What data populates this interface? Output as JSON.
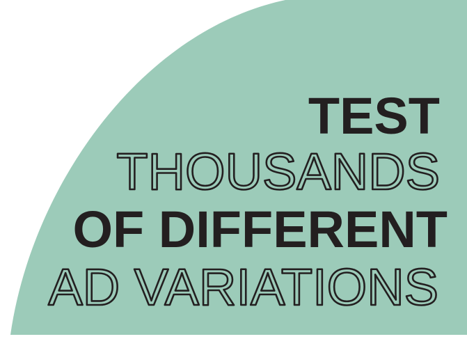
{
  "lines": [
    "TEST",
    "THOUSANDS",
    "OF DIFFERENT",
    "AD VARIATIONS"
  ]
}
